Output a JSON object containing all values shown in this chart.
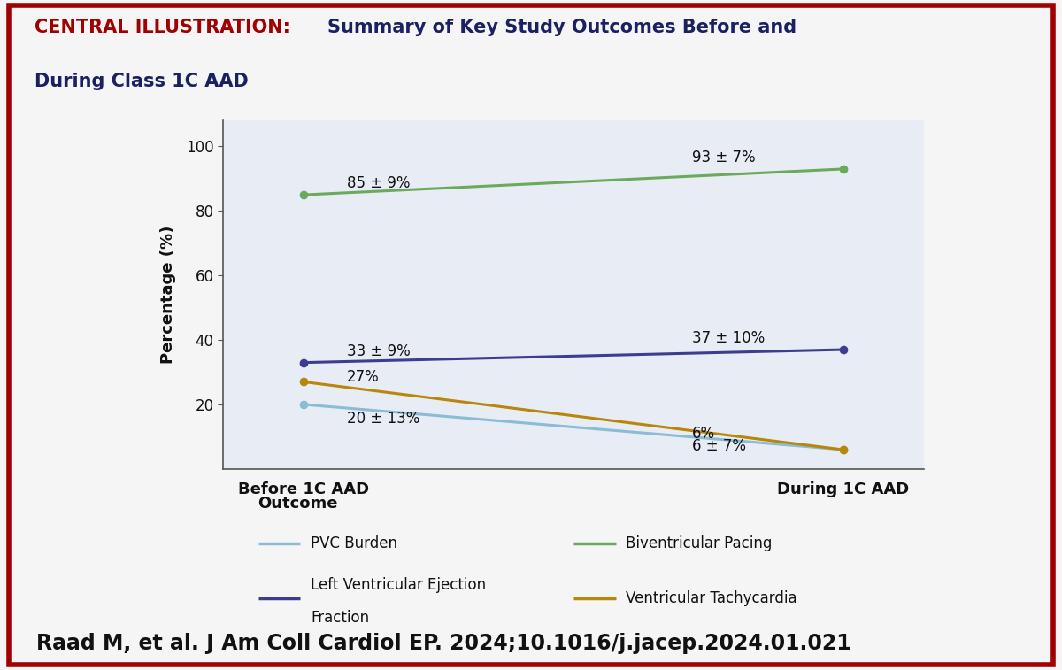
{
  "title_red": "CENTRAL ILLUSTRATION:",
  "title_black": " Summary of Key Study Outcomes Before and\nDuring Class 1C AAD",
  "title_bg_color": "#d6dff0",
  "plot_bg_color": "#e8edf5",
  "outer_bg_color": "#f5f5f5",
  "border_color": "#a00000",
  "xlabel_before": "Before 1C AAD",
  "xlabel_during": "During 1C AAD",
  "ylabel": "Percentage (%)",
  "yticks": [
    20,
    40,
    60,
    80,
    100
  ],
  "ylim": [
    0,
    108
  ],
  "series": [
    {
      "name": "PVC Burden",
      "color": "#8bbcd4",
      "before": 20,
      "during": 6,
      "label_before": "20 ± 13%",
      "label_during": "6 ± 7%"
    },
    {
      "name": "Left Ventricular Ejection\nFraction",
      "color": "#3d3d8f",
      "before": 33,
      "during": 37,
      "label_before": "33 ± 9%",
      "label_during": "37 ± 10%"
    },
    {
      "name": "Biventricular Pacing",
      "color": "#6aaa5a",
      "before": 85,
      "during": 93,
      "label_before": "85 ± 9%",
      "label_during": "93 ± 7%"
    },
    {
      "name": "Ventricular Tachycardia",
      "color": "#b8860b",
      "before": 27,
      "during": 6,
      "label_before": "27%",
      "label_during": "6%"
    }
  ],
  "legend_title": "Outcome",
  "citation": "Raad M, et al. J Am Coll Cardiol EP. 2024;10.1016/j.jacep.2024.01.021",
  "annotation_fontsize": 12,
  "axis_label_fontsize": 13,
  "tick_fontsize": 12,
  "title_fontsize_red": 15,
  "title_fontsize_black": 15,
  "legend_fontsize": 12,
  "citation_fontsize": 17
}
